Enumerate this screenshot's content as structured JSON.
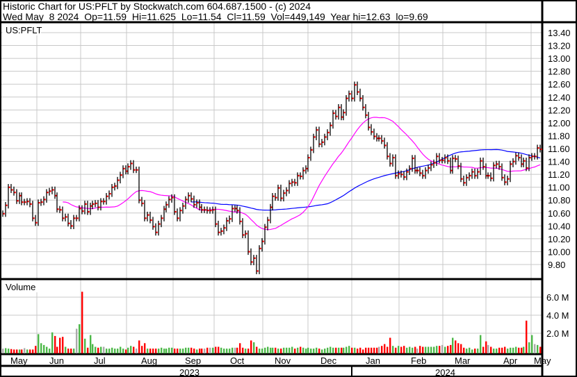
{
  "header": {
    "title": "Historic Chart for US:PFLT by Stockwatch.com 604.687.1500 - (c) 2024",
    "quote": "Wed May  8 2024  Op=11.59  Hi=11.625  Lo=11.54  Cl=11.59  Vol=449,149  Year hi=12.63  lo=9.69"
  },
  "colors": {
    "bar": "#000000",
    "close_tick": "#ff0000",
    "ma_short": "#ff00ff",
    "ma_long": "#0000ff",
    "vol_up": "#4cb848",
    "vol_down": "#ff0000",
    "vol_flat": "#aaaaaa",
    "grid": "#c8c8c8"
  },
  "chart_data": [
    {
      "type": "ohlc",
      "symbol_label": "US:PFLT",
      "ylim": [
        9.7,
        13.45
      ],
      "y_ticks": [
        "9.80",
        "10.00",
        "10.20",
        "10.40",
        "10.60",
        "10.80",
        "11.00",
        "11.20",
        "11.40",
        "11.60",
        "11.80",
        "12.00",
        "12.20",
        "12.40",
        "12.60",
        "12.80",
        "13.00",
        "13.20",
        "13.40"
      ],
      "x_months": [
        "May",
        "Jun",
        "Jul",
        "Aug",
        "Sep",
        "Oct",
        "Nov",
        "Dec",
        "Jan",
        "Feb",
        "Mar",
        "Apr",
        "May"
      ],
      "x_years": [
        "2023",
        "2024"
      ],
      "grid": true,
      "moving_averages": [
        {
          "color": "#ff00ff"
        },
        {
          "color": "#0000ff"
        }
      ],
      "closes": [
        10.59,
        10.72,
        11.0,
        10.96,
        10.92,
        10.79,
        10.87,
        10.77,
        10.77,
        10.78,
        10.74,
        10.52,
        10.45,
        10.76,
        10.77,
        10.81,
        10.92,
        10.94,
        10.96,
        10.87,
        10.66,
        10.65,
        10.52,
        10.54,
        10.44,
        10.4,
        10.52,
        10.52,
        10.67,
        10.63,
        10.74,
        10.62,
        10.71,
        10.74,
        10.75,
        10.69,
        10.78,
        10.78,
        10.86,
        10.9,
        11.0,
        11.02,
        11.11,
        11.19,
        11.29,
        11.25,
        11.32,
        11.37,
        11.27,
        11.27,
        10.8,
        10.75,
        10.52,
        10.57,
        10.49,
        10.39,
        10.3,
        10.43,
        10.52,
        10.66,
        10.73,
        10.81,
        10.84,
        10.62,
        10.52,
        10.64,
        10.71,
        10.81,
        10.87,
        10.82,
        10.73,
        10.76,
        10.69,
        10.65,
        10.65,
        10.64,
        10.64,
        10.65,
        10.43,
        10.3,
        10.32,
        10.37,
        10.48,
        10.51,
        10.67,
        10.67,
        10.64,
        10.47,
        10.26,
        10.28,
        10.0,
        9.84,
        9.9,
        9.7,
        10.05,
        10.16,
        10.38,
        10.49,
        10.69,
        10.86,
        10.84,
        10.99,
        10.83,
        10.91,
        10.95,
        11.06,
        11.08,
        11.07,
        11.18,
        11.17,
        11.26,
        11.29,
        11.46,
        11.58,
        11.78,
        11.89,
        11.67,
        11.7,
        11.78,
        11.85,
        11.96,
        12.15,
        12.1,
        12.24,
        12.09,
        12.16,
        12.38,
        12.45,
        12.38,
        12.59,
        12.48,
        12.38,
        12.24,
        12.12,
        11.93,
        11.86,
        11.79,
        11.76,
        11.76,
        11.72,
        11.65,
        11.48,
        11.37,
        11.46,
        11.18,
        11.21,
        11.2,
        11.16,
        11.24,
        11.29,
        11.45,
        11.26,
        11.26,
        11.22,
        11.18,
        11.26,
        11.3,
        11.35,
        11.38,
        11.48,
        11.42,
        11.42,
        11.46,
        11.41,
        11.26,
        11.45,
        11.44,
        11.33,
        11.13,
        11.07,
        11.15,
        11.18,
        11.24,
        11.18,
        11.24,
        11.41,
        11.32,
        11.18,
        11.18,
        11.14,
        11.34,
        11.36,
        11.32,
        11.15,
        11.08,
        11.13,
        11.36,
        11.4,
        11.49,
        11.46,
        11.36,
        11.41,
        11.3,
        11.46,
        11.48,
        11.48,
        11.61,
        11.59
      ]
    },
    {
      "type": "bar",
      "title": "Volume",
      "ylim": [
        0,
        8
      ],
      "y_ticks": [
        "2.0 M",
        "4.0 M",
        "6.0 M"
      ],
      "unit": "M",
      "values": [
        0.3,
        0.35,
        0.3,
        0.25,
        0.2,
        0.2,
        0.2,
        0.2,
        0.35,
        0.2,
        0.2,
        0.2,
        0.6,
        1.9,
        0.9,
        0.7,
        0.5,
        0.3,
        2.1,
        1.7,
        0.5,
        1.5,
        1.6,
        0.5,
        0.3,
        0.3,
        0.3,
        2.5,
        3.0,
        6.6,
        1.4,
        0.4,
        1.8,
        0.8,
        0.5,
        0.4,
        0.5,
        0.5,
        0.3,
        0.3,
        0.4,
        0.3,
        0.3,
        0.5,
        0.3,
        0.2,
        0.4,
        0.6,
        0.5,
        0.3,
        1.2,
        0.6,
        0.9,
        0.3,
        0.3,
        0.3,
        0.3,
        0.3,
        0.4,
        0.3,
        0.3,
        0.4,
        0.4,
        0.3,
        0.3,
        0.3,
        0.3,
        0.4,
        0.4,
        0.4,
        0.3,
        0.2,
        0.3,
        0.3,
        0.3,
        0.4,
        0.4,
        0.4,
        0.5,
        0.5,
        0.4,
        0.3,
        0.3,
        0.3,
        0.4,
        0.4,
        0.4,
        0.9,
        0.4,
        0.3,
        0.3,
        1.2,
        1.0,
        0.5,
        0.3,
        0.3,
        0.4,
        0.5,
        0.4,
        0.4,
        0.4,
        0.3,
        0.3,
        0.4,
        0.4,
        0.4,
        0.5,
        0.3,
        0.4,
        0.5,
        0.4,
        0.3,
        0.4,
        0.3,
        0.3,
        0.4,
        0.3,
        0.2,
        0.3,
        0.4,
        0.5,
        0.4,
        0.4,
        0.4,
        0.4,
        0.4,
        0.5,
        0.6,
        0.4,
        0.4,
        0.3,
        0.4,
        0.2,
        0.4,
        0.4,
        0.4,
        0.4,
        0.4,
        0.5,
        0.6,
        0.8,
        0.5,
        1.5,
        0.6,
        0.4,
        0.6,
        0.5,
        0.6,
        0.4,
        0.5,
        0.4,
        0.5,
        0.3,
        0.6,
        0.5,
        0.5,
        0.5,
        0.5,
        0.5,
        0.6,
        0.6,
        0.7,
        0.5,
        0.6,
        0.7,
        1.5,
        1.2,
        0.9,
        0.8,
        0.4,
        0.3,
        0.4,
        0.2,
        0.3,
        0.3,
        1.8,
        0.5,
        1.1,
        0.7,
        0.5,
        0.3,
        0.3,
        0.4,
        0.4,
        0.5,
        0.3,
        0.4,
        0.4,
        0.5,
        0.4,
        0.4,
        0.5,
        3.4,
        1.0,
        1.8,
        0.8,
        0.7,
        0.5
      ]
    }
  ]
}
